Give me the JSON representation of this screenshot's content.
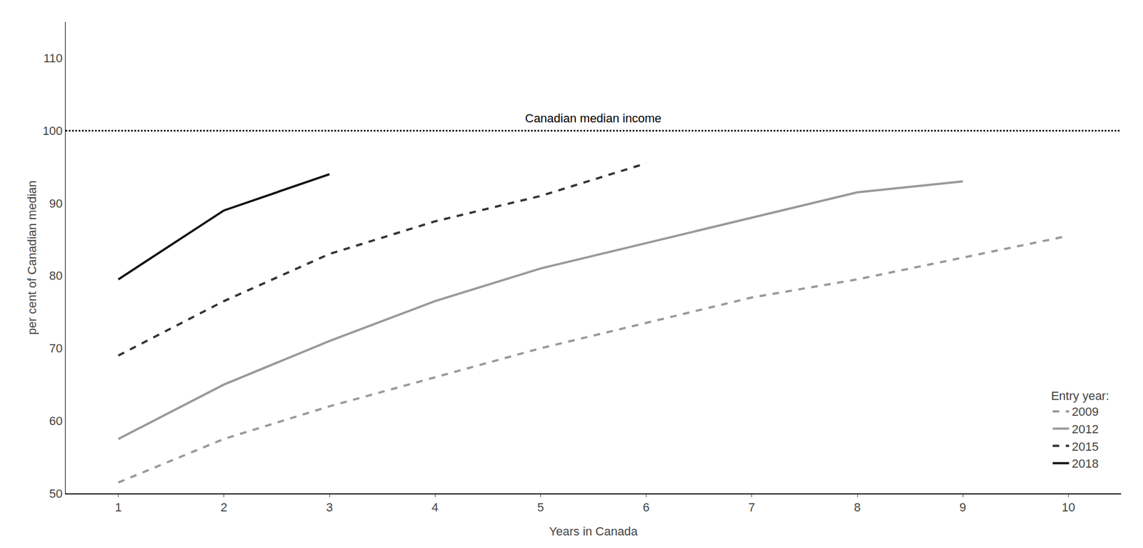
{
  "chart_data": {
    "type": "line",
    "xlabel": "Years in Canada",
    "ylabel": "per cent of Canadian median",
    "xlim": [
      0.5,
      10.5
    ],
    "ylim": [
      50,
      115
    ],
    "xticks": [
      1,
      2,
      3,
      4,
      5,
      6,
      7,
      8,
      9,
      10
    ],
    "yticks": [
      50,
      60,
      70,
      80,
      90,
      100,
      110
    ],
    "grid": false,
    "legend": "lower right",
    "legend_title": "Entry year:",
    "series": [
      {
        "name": "2009",
        "color": "#999999",
        "line_style": "dashed",
        "x": [
          1,
          2,
          3,
          4,
          5,
          6,
          7,
          8,
          9,
          10
        ],
        "values": [
          51.5,
          57.5,
          62.0,
          66.0,
          70.0,
          73.5,
          77.0,
          79.5,
          82.5,
          85.5
        ]
      },
      {
        "name": "2012",
        "color": "#999999",
        "line_style": "solid",
        "x": [
          1,
          2,
          3,
          4,
          5,
          6,
          7,
          8,
          9
        ],
        "values": [
          57.5,
          65.0,
          71.0,
          76.5,
          81.0,
          84.5,
          88.0,
          91.5,
          93.0
        ]
      },
      {
        "name": "2015",
        "color": "#333333",
        "line_style": "dashed",
        "x": [
          1,
          2,
          3,
          4,
          5,
          6
        ],
        "values": [
          69.0,
          76.5,
          83.0,
          87.5,
          91.0,
          95.5
        ]
      },
      {
        "name": "2018",
        "color": "#111111",
        "line_style": "solid",
        "x": [
          1,
          2,
          3
        ],
        "values": [
          79.5,
          89.0,
          94.0
        ]
      }
    ],
    "reference_line": {
      "y": 100,
      "label": "Canadian median income",
      "color": "#000000",
      "line_style": "dotted"
    }
  }
}
